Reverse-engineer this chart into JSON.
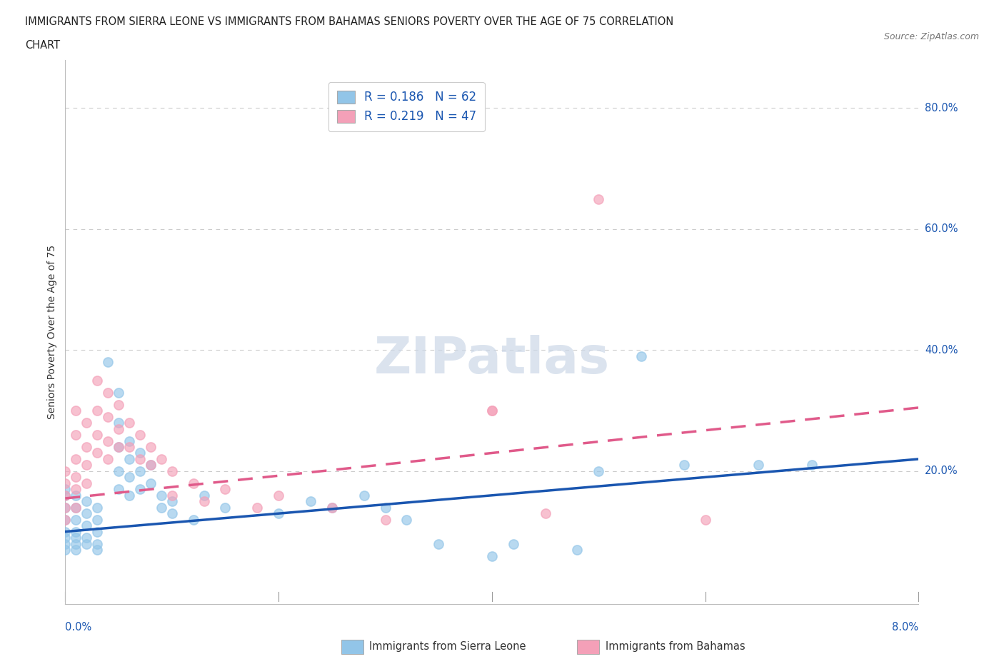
{
  "title_line1": "IMMIGRANTS FROM SIERRA LEONE VS IMMIGRANTS FROM BAHAMAS SENIORS POVERTY OVER THE AGE OF 75 CORRELATION",
  "title_line2": "CHART",
  "source": "Source: ZipAtlas.com",
  "ylabel": "Seniors Poverty Over the Age of 75",
  "x_range": [
    0.0,
    0.08
  ],
  "y_range": [
    -0.02,
    0.88
  ],
  "sierra_leone_color": "#92c5e8",
  "bahamas_color": "#f4a0b8",
  "sierra_leone_line_color": "#1a56b0",
  "bahamas_line_color": "#e05a8a",
  "grid_color": "#cccccc",
  "watermark_color": "#ccd8e8",
  "sl_trend": [
    0.1,
    0.22
  ],
  "bh_trend": [
    0.155,
    0.305
  ],
  "sierra_leone_scatter": [
    [
      0.0,
      0.17
    ],
    [
      0.0,
      0.16
    ],
    [
      0.0,
      0.14
    ],
    [
      0.0,
      0.12
    ],
    [
      0.0,
      0.1
    ],
    [
      0.0,
      0.09
    ],
    [
      0.0,
      0.08
    ],
    [
      0.0,
      0.07
    ],
    [
      0.001,
      0.16
    ],
    [
      0.001,
      0.14
    ],
    [
      0.001,
      0.12
    ],
    [
      0.001,
      0.1
    ],
    [
      0.001,
      0.09
    ],
    [
      0.001,
      0.08
    ],
    [
      0.001,
      0.07
    ],
    [
      0.002,
      0.15
    ],
    [
      0.002,
      0.13
    ],
    [
      0.002,
      0.11
    ],
    [
      0.002,
      0.09
    ],
    [
      0.002,
      0.08
    ],
    [
      0.003,
      0.14
    ],
    [
      0.003,
      0.12
    ],
    [
      0.003,
      0.1
    ],
    [
      0.003,
      0.08
    ],
    [
      0.003,
      0.07
    ],
    [
      0.004,
      0.38
    ],
    [
      0.005,
      0.33
    ],
    [
      0.005,
      0.28
    ],
    [
      0.005,
      0.24
    ],
    [
      0.005,
      0.2
    ],
    [
      0.005,
      0.17
    ],
    [
      0.006,
      0.25
    ],
    [
      0.006,
      0.22
    ],
    [
      0.006,
      0.19
    ],
    [
      0.006,
      0.16
    ],
    [
      0.007,
      0.23
    ],
    [
      0.007,
      0.2
    ],
    [
      0.007,
      0.17
    ],
    [
      0.008,
      0.21
    ],
    [
      0.008,
      0.18
    ],
    [
      0.009,
      0.16
    ],
    [
      0.009,
      0.14
    ],
    [
      0.01,
      0.15
    ],
    [
      0.01,
      0.13
    ],
    [
      0.012,
      0.12
    ],
    [
      0.013,
      0.16
    ],
    [
      0.015,
      0.14
    ],
    [
      0.02,
      0.13
    ],
    [
      0.023,
      0.15
    ],
    [
      0.025,
      0.14
    ],
    [
      0.028,
      0.16
    ],
    [
      0.03,
      0.14
    ],
    [
      0.032,
      0.12
    ],
    [
      0.035,
      0.08
    ],
    [
      0.04,
      0.06
    ],
    [
      0.042,
      0.08
    ],
    [
      0.048,
      0.07
    ],
    [
      0.05,
      0.2
    ],
    [
      0.054,
      0.39
    ],
    [
      0.058,
      0.21
    ],
    [
      0.065,
      0.21
    ],
    [
      0.07,
      0.21
    ]
  ],
  "bahamas_scatter": [
    [
      0.0,
      0.2
    ],
    [
      0.0,
      0.18
    ],
    [
      0.0,
      0.16
    ],
    [
      0.0,
      0.14
    ],
    [
      0.0,
      0.12
    ],
    [
      0.001,
      0.3
    ],
    [
      0.001,
      0.26
    ],
    [
      0.001,
      0.22
    ],
    [
      0.001,
      0.19
    ],
    [
      0.001,
      0.17
    ],
    [
      0.001,
      0.14
    ],
    [
      0.002,
      0.28
    ],
    [
      0.002,
      0.24
    ],
    [
      0.002,
      0.21
    ],
    [
      0.002,
      0.18
    ],
    [
      0.003,
      0.35
    ],
    [
      0.003,
      0.3
    ],
    [
      0.003,
      0.26
    ],
    [
      0.003,
      0.23
    ],
    [
      0.004,
      0.33
    ],
    [
      0.004,
      0.29
    ],
    [
      0.004,
      0.25
    ],
    [
      0.004,
      0.22
    ],
    [
      0.005,
      0.31
    ],
    [
      0.005,
      0.27
    ],
    [
      0.005,
      0.24
    ],
    [
      0.006,
      0.28
    ],
    [
      0.006,
      0.24
    ],
    [
      0.007,
      0.26
    ],
    [
      0.007,
      0.22
    ],
    [
      0.008,
      0.24
    ],
    [
      0.008,
      0.21
    ],
    [
      0.009,
      0.22
    ],
    [
      0.01,
      0.2
    ],
    [
      0.01,
      0.16
    ],
    [
      0.012,
      0.18
    ],
    [
      0.013,
      0.15
    ],
    [
      0.015,
      0.17
    ],
    [
      0.018,
      0.14
    ],
    [
      0.02,
      0.16
    ],
    [
      0.025,
      0.14
    ],
    [
      0.03,
      0.12
    ],
    [
      0.04,
      0.3
    ],
    [
      0.04,
      0.3
    ],
    [
      0.045,
      0.13
    ],
    [
      0.05,
      0.65
    ],
    [
      0.06,
      0.12
    ]
  ]
}
